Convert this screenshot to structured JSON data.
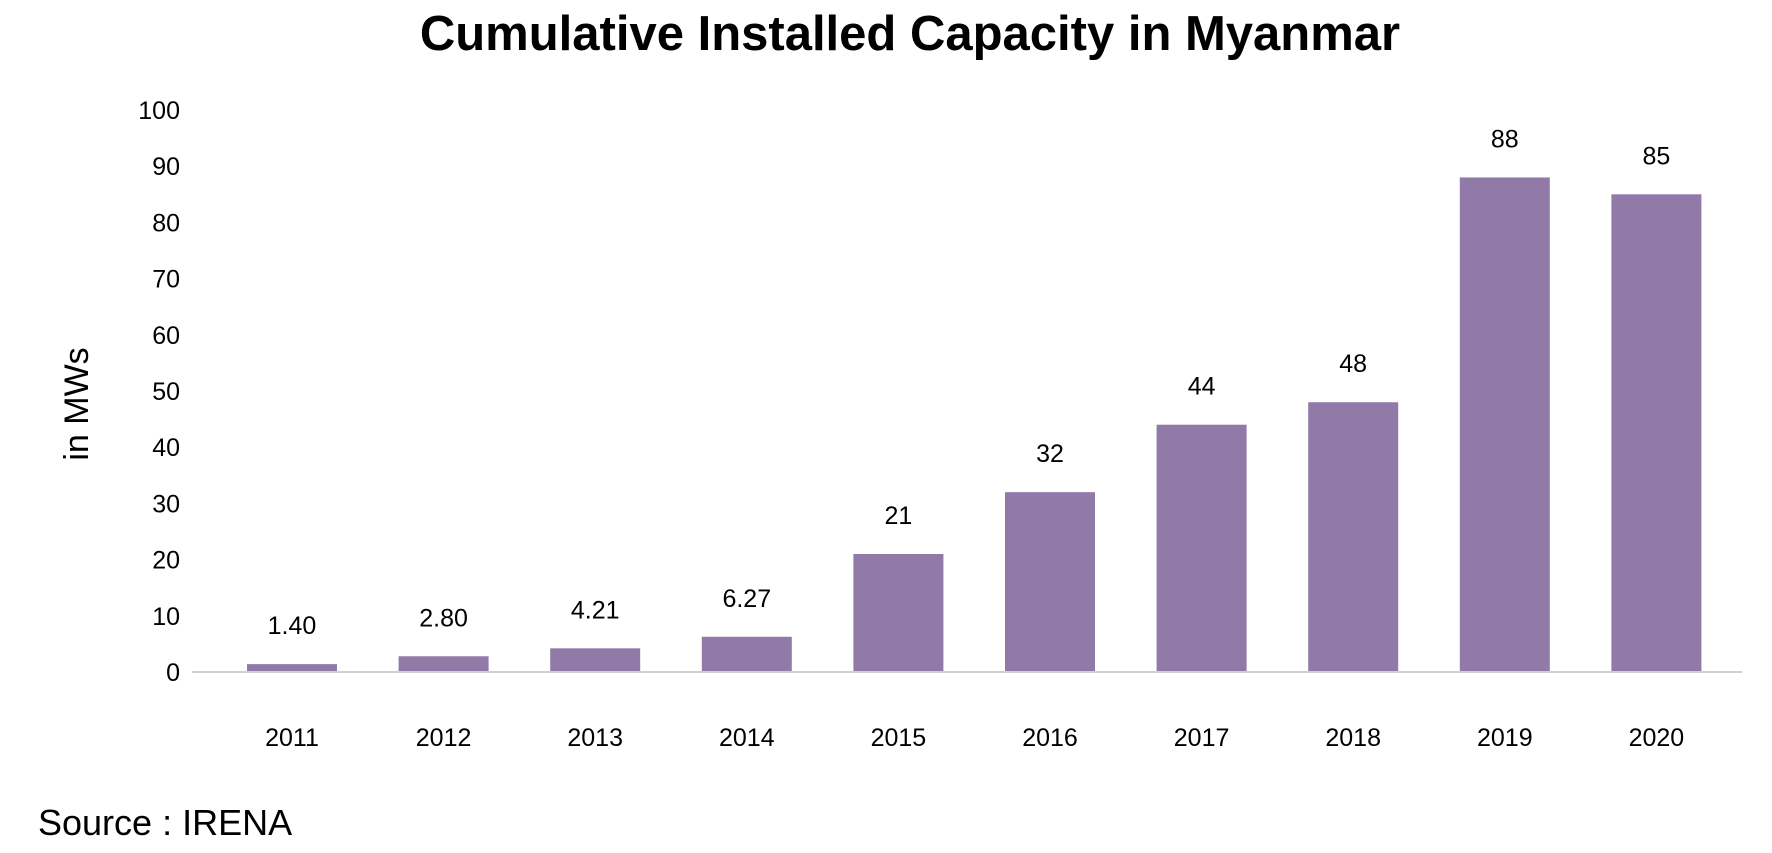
{
  "chart_data": {
    "type": "bar",
    "title": "Cumulative Installed Capacity in Myanmar",
    "xlabel": "",
    "ylabel": "in MWs",
    "categories": [
      "2011",
      "2012",
      "2013",
      "2014",
      "2015",
      "2016",
      "2017",
      "2018",
      "2019",
      "2020"
    ],
    "values": [
      1.4,
      2.8,
      4.21,
      6.27,
      21,
      32,
      44,
      48,
      88,
      85
    ],
    "data_labels": [
      "1.40",
      "2.80",
      "4.21",
      "6.27",
      "21",
      "32",
      "44",
      "48",
      "88",
      "85"
    ],
    "ylim": [
      0,
      100
    ],
    "yticks": [
      0,
      10,
      20,
      30,
      40,
      50,
      60,
      70,
      80,
      90,
      100
    ],
    "grid": false,
    "legend": "none",
    "bar_color": "#9179a8",
    "axis_color": "#d0d0d0"
  },
  "footer": {
    "source": "Source : IRENA"
  }
}
